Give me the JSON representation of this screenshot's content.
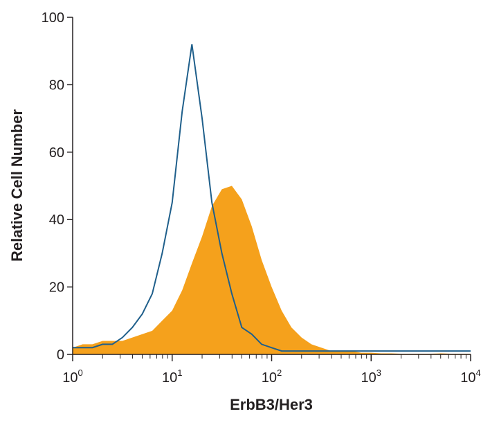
{
  "chart_data": {
    "type": "histogram-overlay",
    "xlabel": "ErbB3/Her3",
    "ylabel": "Relative Cell Number",
    "xscale": "log",
    "xlim": [
      1,
      10000
    ],
    "ylim": [
      0,
      100
    ],
    "xticks": [
      {
        "value": 1,
        "label": "10",
        "sup": "0"
      },
      {
        "value": 10,
        "label": "10",
        "sup": "1"
      },
      {
        "value": 100,
        "label": "10",
        "sup": "2"
      },
      {
        "value": 1000,
        "label": "10",
        "sup": "3"
      },
      {
        "value": 10000,
        "label": "10",
        "sup": "4"
      }
    ],
    "yticks": [
      0,
      20,
      40,
      60,
      80,
      100
    ],
    "x": [
      1,
      1.26,
      1.58,
      2,
      2.51,
      3.16,
      3.98,
      5.01,
      6.31,
      7.94,
      10,
      12.6,
      15.8,
      20,
      25.1,
      31.6,
      39.8,
      50.1,
      63.1,
      79.4,
      100,
      126,
      158,
      200,
      251,
      316,
      398,
      501,
      631,
      794,
      1000,
      1259,
      1585,
      1995,
      2512,
      3162,
      3981,
      5012,
      6310,
      7943,
      10000
    ],
    "series": [
      {
        "style": "filled",
        "color": "#f5a11c",
        "values": [
          2,
          3,
          3,
          4,
          4,
          4,
          5,
          6,
          7,
          10,
          13,
          19,
          27,
          35,
          44,
          49,
          50,
          46,
          38,
          28,
          20,
          13,
          8,
          5,
          3,
          2,
          1,
          1,
          1,
          0.5,
          0.5,
          0.3,
          0.3,
          0.2,
          0.2,
          0.2,
          0.2,
          0.3,
          0.2,
          0.2,
          0.2
        ]
      },
      {
        "style": "outline",
        "color": "#1f5f8b",
        "values": [
          2,
          2,
          2,
          3,
          3,
          5,
          8,
          12,
          18,
          30,
          45,
          72,
          92,
          70,
          45,
          30,
          18,
          8,
          6,
          3,
          2,
          1,
          1,
          1,
          1,
          1,
          1,
          1,
          1,
          1,
          1,
          1,
          1,
          1,
          1,
          1,
          1,
          1,
          1,
          1,
          1
        ]
      }
    ]
  }
}
